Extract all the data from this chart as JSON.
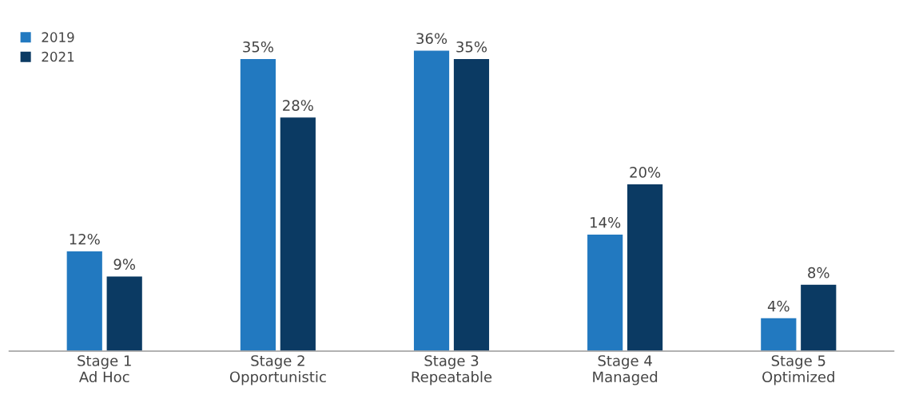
{
  "chart_data": {
    "type": "bar",
    "categories": [
      "Stage 1\nAd Hoc",
      "Stage 2\nOpportunistic",
      "Stage 3\nRepeatable",
      "Stage 4\nManaged",
      "Stage 5\nOptimized"
    ],
    "series": [
      {
        "name": "2019",
        "color": "#2279c0",
        "values": [
          12,
          35,
          36,
          14,
          4
        ],
        "value_labels": [
          "12%",
          "35%",
          "36%",
          "14%",
          "4%"
        ]
      },
      {
        "name": "2021",
        "color": "#0b3a63",
        "values": [
          9,
          28,
          35,
          20,
          8
        ],
        "value_labels": [
          "9%",
          "28%",
          "35%",
          "20%",
          "8%"
        ]
      }
    ],
    "legend": "top left",
    "grid": false
  }
}
